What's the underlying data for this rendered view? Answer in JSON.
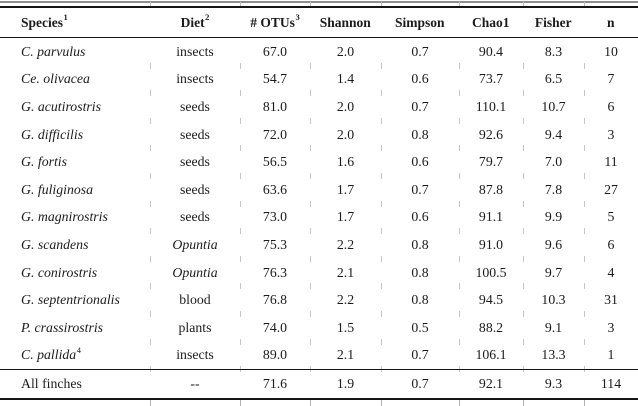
{
  "table": {
    "headers": [
      {
        "label": "Species",
        "sup": "1"
      },
      {
        "label": "Diet",
        "sup": "2"
      },
      {
        "label": "# OTUs",
        "sup": "3"
      },
      {
        "label": "Shannon",
        "sup": ""
      },
      {
        "label": "Simpson",
        "sup": ""
      },
      {
        "label": "Chao1",
        "sup": ""
      },
      {
        "label": "Fisher",
        "sup": ""
      },
      {
        "label": "n",
        "sup": ""
      }
    ],
    "rows": [
      {
        "species": "C. parvulus",
        "species_sup": "",
        "species_italic": true,
        "diet": "insects",
        "diet_italic": false,
        "values": [
          "67.0",
          "2.0",
          "0.7",
          "90.4",
          "8.3",
          "10"
        ]
      },
      {
        "species": "Ce. olivacea",
        "species_sup": "",
        "species_italic": true,
        "diet": "insects",
        "diet_italic": false,
        "values": [
          "54.7",
          "1.4",
          "0.6",
          "73.7",
          "6.5",
          "7"
        ]
      },
      {
        "species": "G. acutirostris",
        "species_sup": "",
        "species_italic": true,
        "diet": "seeds",
        "diet_italic": false,
        "values": [
          "81.0",
          "2.0",
          "0.7",
          "110.1",
          "10.7",
          "6"
        ]
      },
      {
        "species": "G. difficilis",
        "species_sup": "",
        "species_italic": true,
        "diet": "seeds",
        "diet_italic": false,
        "values": [
          "72.0",
          "2.0",
          "0.8",
          "92.6",
          "9.4",
          "3"
        ]
      },
      {
        "species": "G. fortis",
        "species_sup": "",
        "species_italic": true,
        "diet": "seeds",
        "diet_italic": false,
        "values": [
          "56.5",
          "1.6",
          "0.6",
          "79.7",
          "7.0",
          "11"
        ]
      },
      {
        "species": "G. fuliginosa",
        "species_sup": "",
        "species_italic": true,
        "diet": "seeds",
        "diet_italic": false,
        "values": [
          "63.6",
          "1.7",
          "0.7",
          "87.8",
          "7.8",
          "27"
        ]
      },
      {
        "species": "G. magnirostris",
        "species_sup": "",
        "species_italic": true,
        "diet": "seeds",
        "diet_italic": false,
        "values": [
          "73.0",
          "1.7",
          "0.6",
          "91.1",
          "9.9",
          "5"
        ]
      },
      {
        "species": "G. scandens",
        "species_sup": "",
        "species_italic": true,
        "diet": "Opuntia",
        "diet_italic": true,
        "values": [
          "75.3",
          "2.2",
          "0.8",
          "91.0",
          "9.6",
          "6"
        ]
      },
      {
        "species": "G. conirostris",
        "species_sup": "",
        "species_italic": true,
        "diet": "Opuntia",
        "diet_italic": true,
        "values": [
          "76.3",
          "2.1",
          "0.8",
          "100.5",
          "9.7",
          "4"
        ]
      },
      {
        "species": "G. septentrionalis",
        "species_sup": "",
        "species_italic": true,
        "diet": "blood",
        "diet_italic": false,
        "values": [
          "76.8",
          "2.2",
          "0.8",
          "94.5",
          "10.3",
          "31"
        ]
      },
      {
        "species": "P. crassirostris",
        "species_sup": "",
        "species_italic": true,
        "diet": "plants",
        "diet_italic": false,
        "values": [
          "74.0",
          "1.5",
          "0.5",
          "88.2",
          "9.1",
          "3"
        ]
      },
      {
        "species": "C. pallida",
        "species_sup": "4",
        "species_italic": true,
        "diet": "insects",
        "diet_italic": false,
        "values": [
          "89.0",
          "2.1",
          "0.7",
          "106.1",
          "13.3",
          "1"
        ]
      }
    ],
    "summary": {
      "species": "All finches",
      "species_sup": "",
      "species_italic": false,
      "diet": "--",
      "diet_italic": false,
      "values": [
        "71.6",
        "1.9",
        "0.7",
        "92.1",
        "9.3",
        "114"
      ]
    }
  },
  "colors": {
    "background": "#ffffff",
    "text": "#1b1b1b",
    "rule": "#151515",
    "hairline": "#8f8f8f",
    "tick": "#c6c6c6"
  }
}
